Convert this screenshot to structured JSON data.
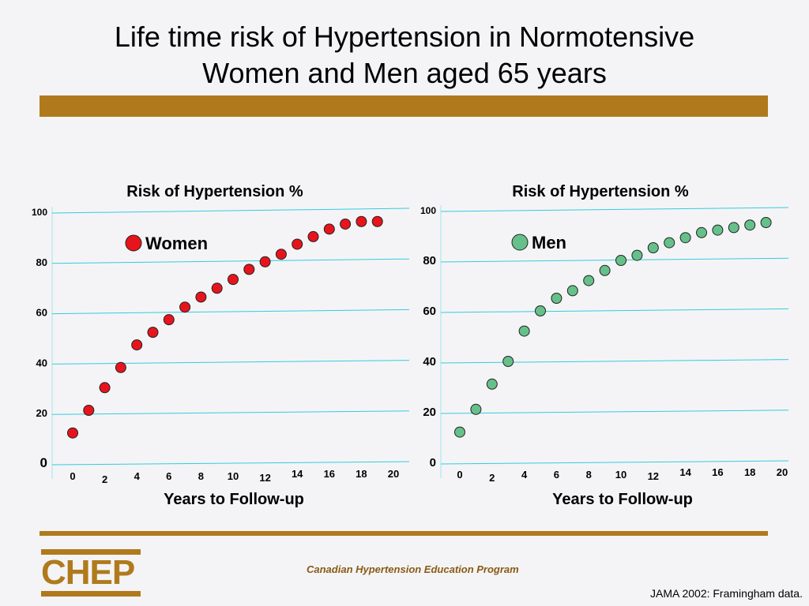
{
  "slide": {
    "title_line1": "Life time risk of Hypertension in Normotensive",
    "title_line2": "Women and Men aged 65 years",
    "footer_org": "Canadian Hypertension Education Program",
    "logo_text": "CHEP",
    "source": "JAMA 2002: Framingham data.",
    "accent_color": "#b07a1c"
  },
  "chart_data": [
    {
      "type": "scatter",
      "title": "Risk of Hypertension %",
      "xlabel": "Years to Follow-up",
      "ylabel": "",
      "x_ticks": [
        "0",
        "2",
        "4",
        "6",
        "8",
        "10",
        "12",
        "14",
        "16",
        "18",
        "20"
      ],
      "y_ticks": [
        "0",
        "20",
        "40",
        "60",
        "80",
        "100"
      ],
      "ylim": [
        0,
        100
      ],
      "xlim": [
        0,
        20
      ],
      "grid": true,
      "series": [
        {
          "name": "Women",
          "color": "#e8141c",
          "x": [
            0,
            1,
            2,
            3,
            4,
            5,
            6,
            7,
            8,
            9,
            10,
            11,
            12,
            13,
            14,
            15,
            16,
            17,
            18,
            19
          ],
          "values": [
            12,
            21,
            30,
            38,
            47,
            52,
            57,
            62,
            66,
            69.5,
            73,
            77,
            80,
            83,
            87,
            90,
            93,
            95,
            96,
            96
          ]
        }
      ]
    },
    {
      "type": "scatter",
      "title": "Risk of Hypertension %",
      "xlabel": "Years to Follow-up",
      "ylabel": "",
      "x_ticks": [
        "0",
        "2",
        "4",
        "6",
        "8",
        "10",
        "12",
        "14",
        "16",
        "18",
        "20"
      ],
      "y_ticks": [
        "0",
        "20",
        "40",
        "60",
        "80",
        "100"
      ],
      "ylim": [
        0,
        100
      ],
      "xlim": [
        0,
        20
      ],
      "grid": true,
      "series": [
        {
          "name": "Men",
          "color": "#66c08a",
          "x": [
            0,
            1,
            2,
            3,
            4,
            5,
            6,
            7,
            8,
            9,
            10,
            11,
            12,
            13,
            14,
            15,
            16,
            17,
            18,
            19
          ],
          "values": [
            12,
            21,
            31,
            40,
            52,
            60,
            65,
            68,
            72,
            76,
            80,
            82,
            85,
            87,
            89,
            91,
            92,
            93,
            94,
            95
          ]
        }
      ]
    }
  ]
}
